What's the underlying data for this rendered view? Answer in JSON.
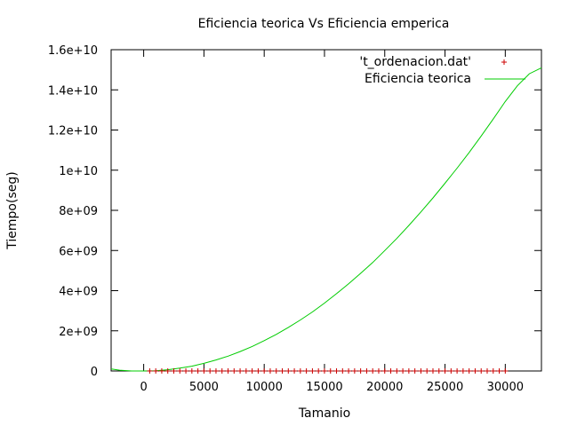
{
  "chart_data": {
    "type": "line",
    "title": "Eficiencia teorica Vs Eficiencia emperica",
    "xlabel": "Tamanio",
    "ylabel": "Tiempo(seg)",
    "xlim": [
      -2700,
      33000
    ],
    "ylim": [
      0,
      16000000000
    ],
    "x_ticks": [
      0,
      5000,
      10000,
      15000,
      20000,
      25000,
      30000
    ],
    "x_tick_labels": [
      "0",
      "5000",
      "10000",
      "15000",
      "20000",
      "25000",
      "30000"
    ],
    "y_ticks": [
      0,
      2000000000,
      4000000000,
      6000000000,
      8000000000,
      10000000000,
      12000000000,
      14000000000,
      16000000000
    ],
    "y_tick_labels": [
      "0",
      "2e+09",
      "4e+09",
      "6e+09",
      "8e+09",
      "1e+10",
      "1.2e+10",
      "1.4e+10",
      "1.6e+10"
    ],
    "grid": false,
    "legend_position": "top-right",
    "series": [
      {
        "name": "'t_ordenacion.dat'",
        "kind": "points",
        "marker": "+",
        "color": "#cc0000",
        "x": [
          500,
          1000,
          1500,
          2000,
          2500,
          3000,
          3500,
          4000,
          4500,
          5000,
          5500,
          6000,
          6500,
          7000,
          7500,
          8000,
          8500,
          9000,
          9500,
          10000,
          10500,
          11000,
          11500,
          12000,
          12500,
          13000,
          13500,
          14000,
          14500,
          15000,
          15500,
          16000,
          16500,
          17000,
          17500,
          18000,
          18500,
          19000,
          19500,
          20000,
          20500,
          21000,
          21500,
          22000,
          22500,
          23000,
          23500,
          24000,
          24500,
          25000,
          25500,
          26000,
          26500,
          27000,
          27500,
          28000,
          28500,
          29000,
          29500,
          30000
        ],
        "y": [
          0,
          0,
          0,
          0,
          0,
          0,
          0,
          0,
          0,
          0,
          0,
          0,
          0,
          0,
          0,
          0,
          0,
          0,
          0,
          0,
          0,
          0,
          0,
          0,
          0,
          0,
          0,
          0,
          0,
          0,
          0,
          0,
          0,
          0,
          0,
          0,
          0,
          0,
          0,
          0,
          0,
          0,
          0,
          0,
          0,
          0,
          0,
          0,
          0,
          0,
          0,
          0,
          0,
          0,
          0,
          0,
          0,
          0,
          0,
          0
        ]
      },
      {
        "name": "Eficiencia teorica",
        "kind": "line",
        "color": "#00cc00",
        "x": [
          -2700,
          -2000,
          -1000,
          0,
          1000,
          2000,
          3000,
          4000,
          5000,
          6000,
          7000,
          8000,
          9000,
          10000,
          11000,
          12000,
          13000,
          14000,
          15000,
          16000,
          17000,
          18000,
          19000,
          20000,
          21000,
          22000,
          23000,
          24000,
          25000,
          26000,
          27000,
          28000,
          29000,
          30000,
          31000,
          32000,
          33000
        ],
        "y": [
          100000000,
          40000000,
          0,
          0,
          15000000,
          60000000,
          140000000,
          240000000,
          380000000,
          550000000,
          740000000,
          970000000,
          1220000000,
          1510000000,
          1820000000,
          2170000000,
          2540000000,
          2940000000,
          3380000000,
          3850000000,
          4340000000,
          4860000000,
          5400000000,
          6000000000,
          6600000000,
          7250000000,
          7920000000,
          8620000000,
          9350000000,
          10100000000,
          10880000000,
          11700000000,
          12550000000,
          13420000000,
          14200000000,
          14800000000,
          15100000000
        ]
      }
    ]
  }
}
